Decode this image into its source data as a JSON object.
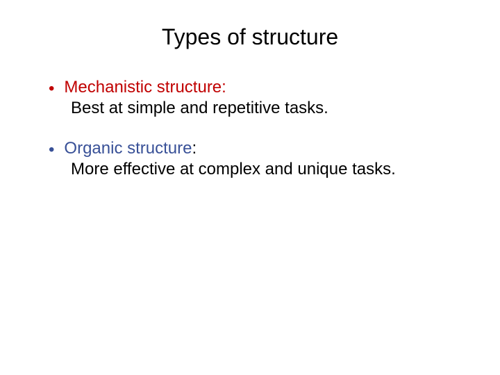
{
  "slide": {
    "title": "Types of structure",
    "title_color": "#000000",
    "title_fontsize": 32,
    "background_color": "#ffffff",
    "bullets": [
      {
        "marker_color": "#c00000",
        "heading": "Mechanistic structure:",
        "heading_color": "#c00000",
        "body": "Best at simple and repetitive tasks.",
        "body_color": "#000000"
      },
      {
        "marker_color": "#385097",
        "heading": "Organic structure",
        "heading_color": "#385097",
        "colon": ":",
        "colon_color": "#000000",
        "body": "More effective at complex and unique tasks.",
        "body_color": "#000000"
      }
    ],
    "body_fontsize": 24
  }
}
